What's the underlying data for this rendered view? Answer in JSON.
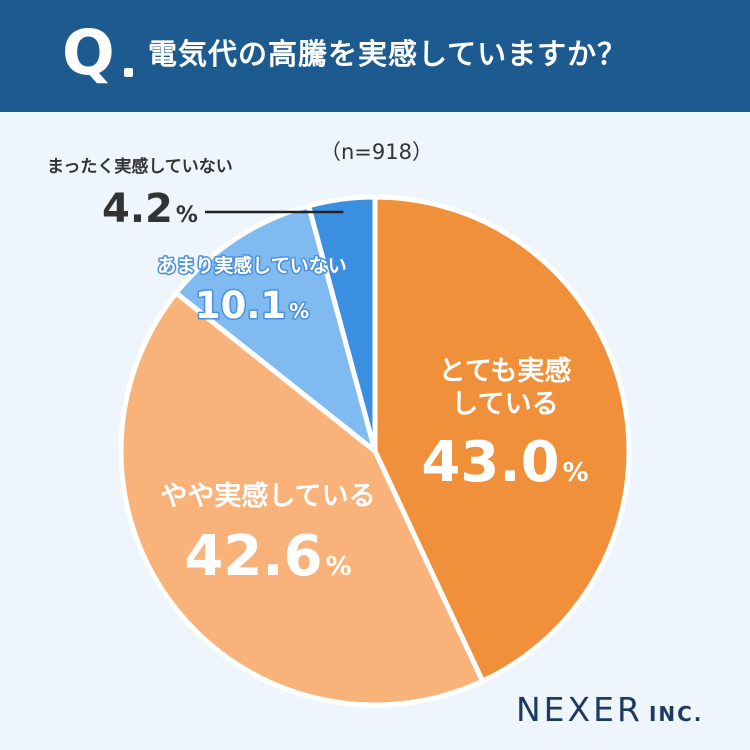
{
  "header": {
    "q_mark": "Q",
    "question": "電気代の高騰を実感していますか？"
  },
  "sample_size": "（n=918）",
  "brand": {
    "name": "NEXER",
    "suffix": "INC."
  },
  "colors": {
    "header_bg": "#1d5a8f",
    "background": "#eef5fc",
    "strongly_feel": "#f0903a",
    "somewhat_feel": "#f9b27a",
    "not_really": "#7fbbf1",
    "not_at_all": "#3a8fe0"
  },
  "chart_data": {
    "type": "pie",
    "title": "電気代の高騰を実感していますか？",
    "unit": "%",
    "slices": [
      {
        "label_lines": [
          "とても実感",
          "している"
        ],
        "value": 43.0,
        "value_text": "43.0",
        "color": "#f0903a"
      },
      {
        "label_lines": [
          "やや実感している"
        ],
        "value": 42.6,
        "value_text": "42.6",
        "color": "#f9b27a"
      },
      {
        "label_lines": [
          "あまり実感していない"
        ],
        "value": 10.1,
        "value_text": "10.1",
        "color": "#7fbbf1"
      },
      {
        "label_lines": [
          "まったく実感していない"
        ],
        "value": 4.2,
        "value_text": "4.2",
        "color": "#3a8fe0"
      }
    ]
  }
}
